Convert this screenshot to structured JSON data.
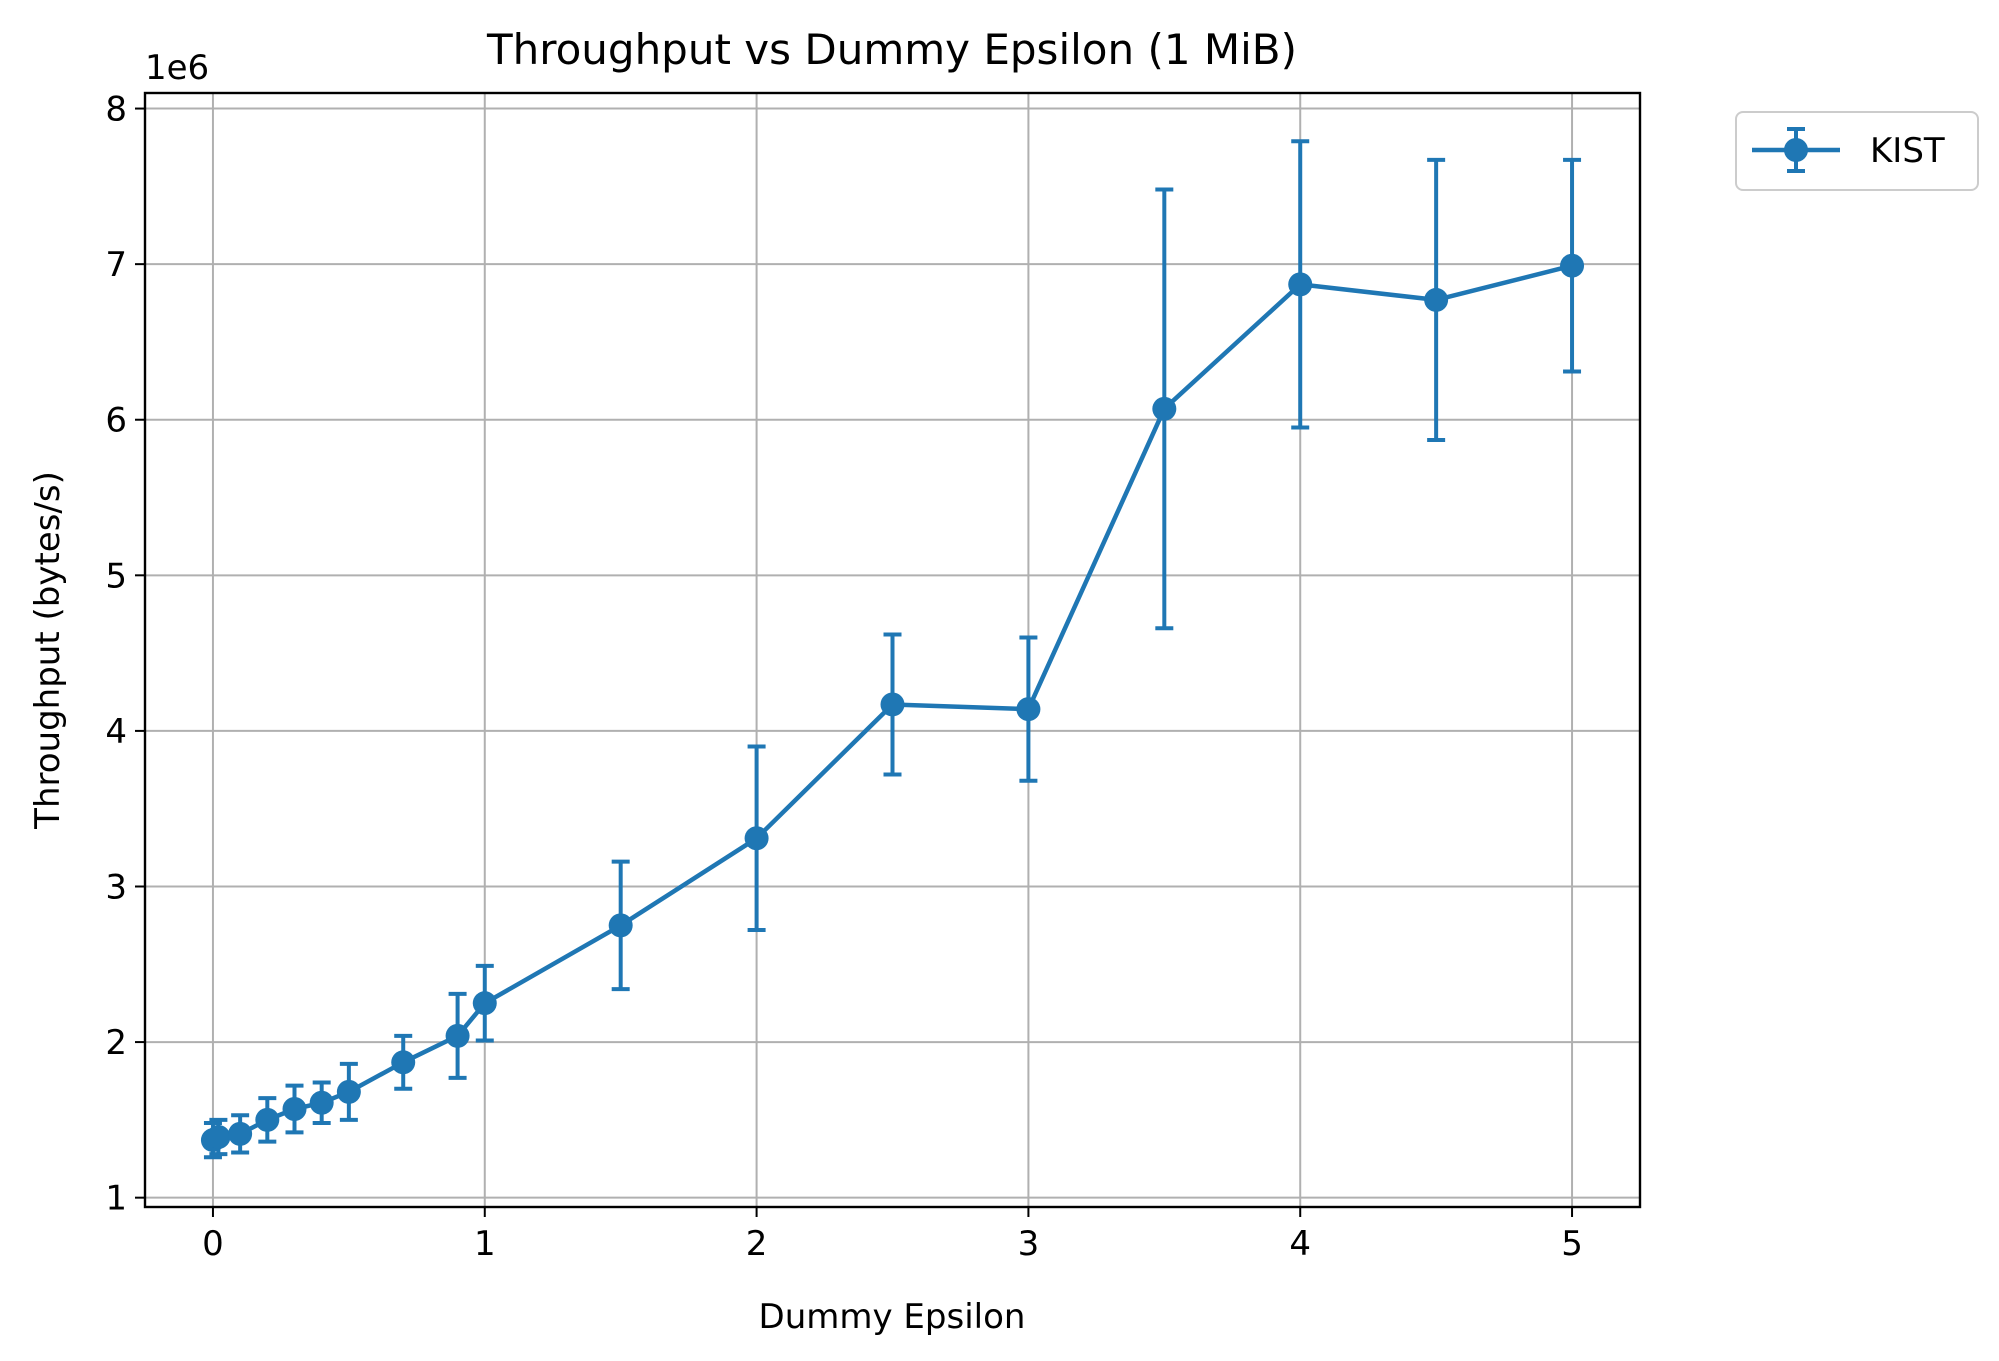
{
  "chart_data": {
    "type": "line",
    "title": "Throughput vs Dummy Epsilon (1 MiB)",
    "xlabel": "Dummy Epsilon",
    "ylabel": "Throughput (bytes/s)",
    "y_offset_label": "1e6",
    "xlim": [
      -0.25,
      5.25
    ],
    "ylim": [
      0.94,
      8.1
    ],
    "x_ticks": [
      0,
      1,
      2,
      3,
      4,
      5
    ],
    "x_tick_labels": [
      "0",
      "1",
      "2",
      "3",
      "4",
      "5"
    ],
    "y_ticks": [
      1,
      2,
      3,
      4,
      5,
      6,
      7,
      8
    ],
    "y_tick_labels": [
      "1",
      "2",
      "3",
      "4",
      "5",
      "6",
      "7",
      "8"
    ],
    "y_unit_multiplier": 1000000,
    "grid": true,
    "legend_position": "outside-top-right",
    "series": [
      {
        "name": "KIST",
        "color": "#1f77b4",
        "marker": "circle",
        "x": [
          0,
          0.02,
          0.1,
          0.2,
          0.3,
          0.4,
          0.5,
          0.7,
          0.9,
          1.0,
          1.5,
          2.0,
          2.5,
          3.0,
          3.5,
          4.0,
          4.5,
          5.0
        ],
        "y": [
          1.37,
          1.39,
          1.41,
          1.5,
          1.57,
          1.61,
          1.68,
          1.87,
          2.04,
          2.25,
          2.75,
          3.31,
          4.17,
          4.14,
          6.07,
          6.87,
          6.77,
          6.99
        ],
        "err": [
          0.11,
          0.11,
          0.12,
          0.14,
          0.15,
          0.13,
          0.18,
          0.17,
          0.27,
          0.24,
          0.41,
          0.59,
          0.45,
          0.46,
          1.41,
          0.92,
          0.9,
          0.68
        ]
      }
    ]
  }
}
